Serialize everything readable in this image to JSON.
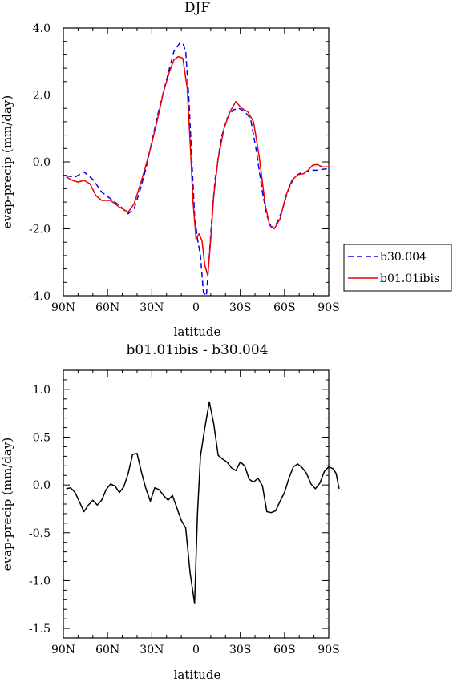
{
  "chart_data": [
    {
      "type": "line",
      "title": "DJF",
      "xlabel": "latitude",
      "ylabel": "evap-precip (mm/day)",
      "x_unit": "degrees latitude (90N = -90, 90S = +90)",
      "xlim": [
        -90,
        90
      ],
      "ylim": [
        -4.0,
        4.0
      ],
      "x_ticks": [
        -90,
        -60,
        -30,
        0,
        30,
        60,
        90
      ],
      "x_tick_labels": [
        "90N",
        "60N",
        "30N",
        "0",
        "30S",
        "60S",
        "90S"
      ],
      "y_ticks": [
        -4.0,
        -2.0,
        0.0,
        2.0,
        4.0
      ],
      "y_tick_labels": [
        "-4.0",
        "-2.0",
        "0.0",
        "2.0",
        "4.0"
      ],
      "legend": "right",
      "series": [
        {
          "name": "b30.004",
          "color": "#0000ee",
          "dash": "dashed",
          "points": [
            [
              -88,
              -0.42
            ],
            [
              -82,
              -0.45
            ],
            [
              -76,
              -0.3
            ],
            [
              -70,
              -0.52
            ],
            [
              -64,
              -0.9
            ],
            [
              -58,
              -1.1
            ],
            [
              -52,
              -1.3
            ],
            [
              -46,
              -1.55
            ],
            [
              -42,
              -1.4
            ],
            [
              -38,
              -0.85
            ],
            [
              -34,
              -0.2
            ],
            [
              -30,
              0.6
            ],
            [
              -26,
              1.4
            ],
            [
              -22,
              2.1
            ],
            [
              -18,
              2.8
            ],
            [
              -15,
              3.3
            ],
            [
              -11,
              3.55
            ],
            [
              -9,
              3.55
            ],
            [
              -7,
              3.3
            ],
            [
              -5,
              2.0
            ],
            [
              -3,
              0.2
            ],
            [
              -1,
              -1.6
            ],
            [
              1,
              -2.3
            ],
            [
              3,
              -2.8
            ],
            [
              5,
              -3.9
            ],
            [
              7,
              -4.0
            ],
            [
              9,
              -2.8
            ],
            [
              11,
              -1.5
            ],
            [
              13,
              -0.5
            ],
            [
              17,
              0.7
            ],
            [
              21,
              1.3
            ],
            [
              25,
              1.55
            ],
            [
              29,
              1.6
            ],
            [
              33,
              1.5
            ],
            [
              37,
              1.3
            ],
            [
              41,
              0.3
            ],
            [
              45,
              -0.9
            ],
            [
              48,
              -1.6
            ],
            [
              51,
              -1.95
            ],
            [
              54,
              -1.9
            ],
            [
              58,
              -1.5
            ],
            [
              62,
              -0.9
            ],
            [
              66,
              -0.5
            ],
            [
              70,
              -0.35
            ],
            [
              74,
              -0.3
            ],
            [
              78,
              -0.25
            ],
            [
              82,
              -0.25
            ],
            [
              86,
              -0.22
            ],
            [
              90,
              -0.2
            ]
          ]
        },
        {
          "name": "b01.01ibis",
          "color": "#ee0000",
          "dash": "solid",
          "points": [
            [
              -88,
              -0.45
            ],
            [
              -84,
              -0.55
            ],
            [
              -80,
              -0.6
            ],
            [
              -76,
              -0.55
            ],
            [
              -72,
              -0.65
            ],
            [
              -68,
              -1.0
            ],
            [
              -64,
              -1.15
            ],
            [
              -58,
              -1.15
            ],
            [
              -52,
              -1.35
            ],
            [
              -46,
              -1.5
            ],
            [
              -42,
              -1.25
            ],
            [
              -38,
              -0.7
            ],
            [
              -34,
              -0.1
            ],
            [
              -30,
              0.55
            ],
            [
              -26,
              1.3
            ],
            [
              -22,
              2.1
            ],
            [
              -18,
              2.7
            ],
            [
              -15,
              3.05
            ],
            [
              -12,
              3.15
            ],
            [
              -9,
              3.1
            ],
            [
              -6,
              2.2
            ],
            [
              -4,
              0.6
            ],
            [
              -2,
              -1.2
            ],
            [
              0,
              -2.3
            ],
            [
              2,
              -2.15
            ],
            [
              4,
              -2.35
            ],
            [
              6,
              -3.1
            ],
            [
              8,
              -3.4
            ],
            [
              10,
              -2.3
            ],
            [
              12,
              -1.0
            ],
            [
              15,
              0.1
            ],
            [
              19,
              1.0
            ],
            [
              23,
              1.5
            ],
            [
              27,
              1.8
            ],
            [
              31,
              1.6
            ],
            [
              35,
              1.5
            ],
            [
              39,
              1.2
            ],
            [
              43,
              0.1
            ],
            [
              47,
              -1.3
            ],
            [
              50,
              -1.9
            ],
            [
              53,
              -2.0
            ],
            [
              57,
              -1.7
            ],
            [
              61,
              -1.0
            ],
            [
              65,
              -0.55
            ],
            [
              69,
              -0.38
            ],
            [
              73,
              -0.35
            ],
            [
              76,
              -0.25
            ],
            [
              79,
              -0.1
            ],
            [
              82,
              -0.08
            ],
            [
              86,
              -0.15
            ],
            [
              90,
              -0.15
            ]
          ]
        }
      ]
    },
    {
      "type": "line",
      "title": "b01.01ibis - b30.004",
      "xlabel": "latitude",
      "ylabel": "evap-precip (mm/day)",
      "x_unit": "degrees latitude (90N = -90, 90S = +90)",
      "xlim": [
        -90,
        90
      ],
      "ylim": [
        -1.6,
        1.2
      ],
      "x_ticks": [
        -90,
        -60,
        -30,
        0,
        30,
        60,
        90
      ],
      "x_tick_labels": [
        "90N",
        "60N",
        "30N",
        "0",
        "30S",
        "60S",
        "90S"
      ],
      "y_ticks": [
        -1.5,
        -1.0,
        -0.5,
        0.0,
        0.5,
        1.0
      ],
      "y_tick_labels": [
        "-1.5",
        "-1.0",
        "-0.5",
        "0.0",
        "0.5",
        "1.0"
      ],
      "series": [
        {
          "color": "#000000",
          "dash": "solid",
          "points": [
            [
              -88,
              -0.04
            ],
            [
              -85,
              -0.03
            ],
            [
              -82,
              -0.08
            ],
            [
              -79,
              -0.18
            ],
            [
              -76,
              -0.28
            ],
            [
              -73,
              -0.21
            ],
            [
              -70,
              -0.16
            ],
            [
              -67,
              -0.21
            ],
            [
              -64,
              -0.16
            ],
            [
              -61,
              -0.05
            ],
            [
              -58,
              0.01
            ],
            [
              -55,
              -0.01
            ],
            [
              -52,
              -0.08
            ],
            [
              -49,
              -0.02
            ],
            [
              -46,
              0.12
            ],
            [
              -43,
              0.32
            ],
            [
              -40,
              0.33
            ],
            [
              -37,
              0.13
            ],
            [
              -34,
              -0.04
            ],
            [
              -31,
              -0.17
            ],
            [
              -28,
              -0.03
            ],
            [
              -25,
              -0.05
            ],
            [
              -22,
              -0.11
            ],
            [
              -19,
              -0.16
            ],
            [
              -16,
              -0.11
            ],
            [
              -13,
              -0.24
            ],
            [
              -10,
              -0.37
            ],
            [
              -7,
              -0.45
            ],
            [
              -4,
              -0.92
            ],
            [
              -1,
              -1.24
            ],
            [
              1,
              -0.3
            ],
            [
              3,
              0.3
            ],
            [
              6,
              0.6
            ],
            [
              9,
              0.87
            ],
            [
              12,
              0.64
            ],
            [
              15,
              0.31
            ],
            [
              18,
              0.27
            ],
            [
              21,
              0.24
            ],
            [
              24,
              0.18
            ],
            [
              27,
              0.15
            ],
            [
              30,
              0.24
            ],
            [
              33,
              0.2
            ],
            [
              36,
              0.06
            ],
            [
              39,
              0.03
            ],
            [
              42,
              0.07
            ],
            [
              45,
              -0.01
            ],
            [
              48,
              -0.28
            ],
            [
              51,
              -0.29
            ],
            [
              54,
              -0.27
            ],
            [
              57,
              -0.17
            ],
            [
              60,
              -0.08
            ],
            [
              63,
              0.07
            ],
            [
              66,
              0.19
            ],
            [
              69,
              0.22
            ],
            [
              72,
              0.18
            ],
            [
              75,
              0.12
            ],
            [
              78,
              0.01
            ],
            [
              81,
              -0.04
            ],
            [
              84,
              0.02
            ],
            [
              87,
              0.14
            ],
            [
              90,
              0.19
            ],
            [
              93,
              0.17
            ],
            [
              95,
              0.12
            ],
            [
              97,
              -0.04
            ]
          ]
        }
      ]
    }
  ]
}
